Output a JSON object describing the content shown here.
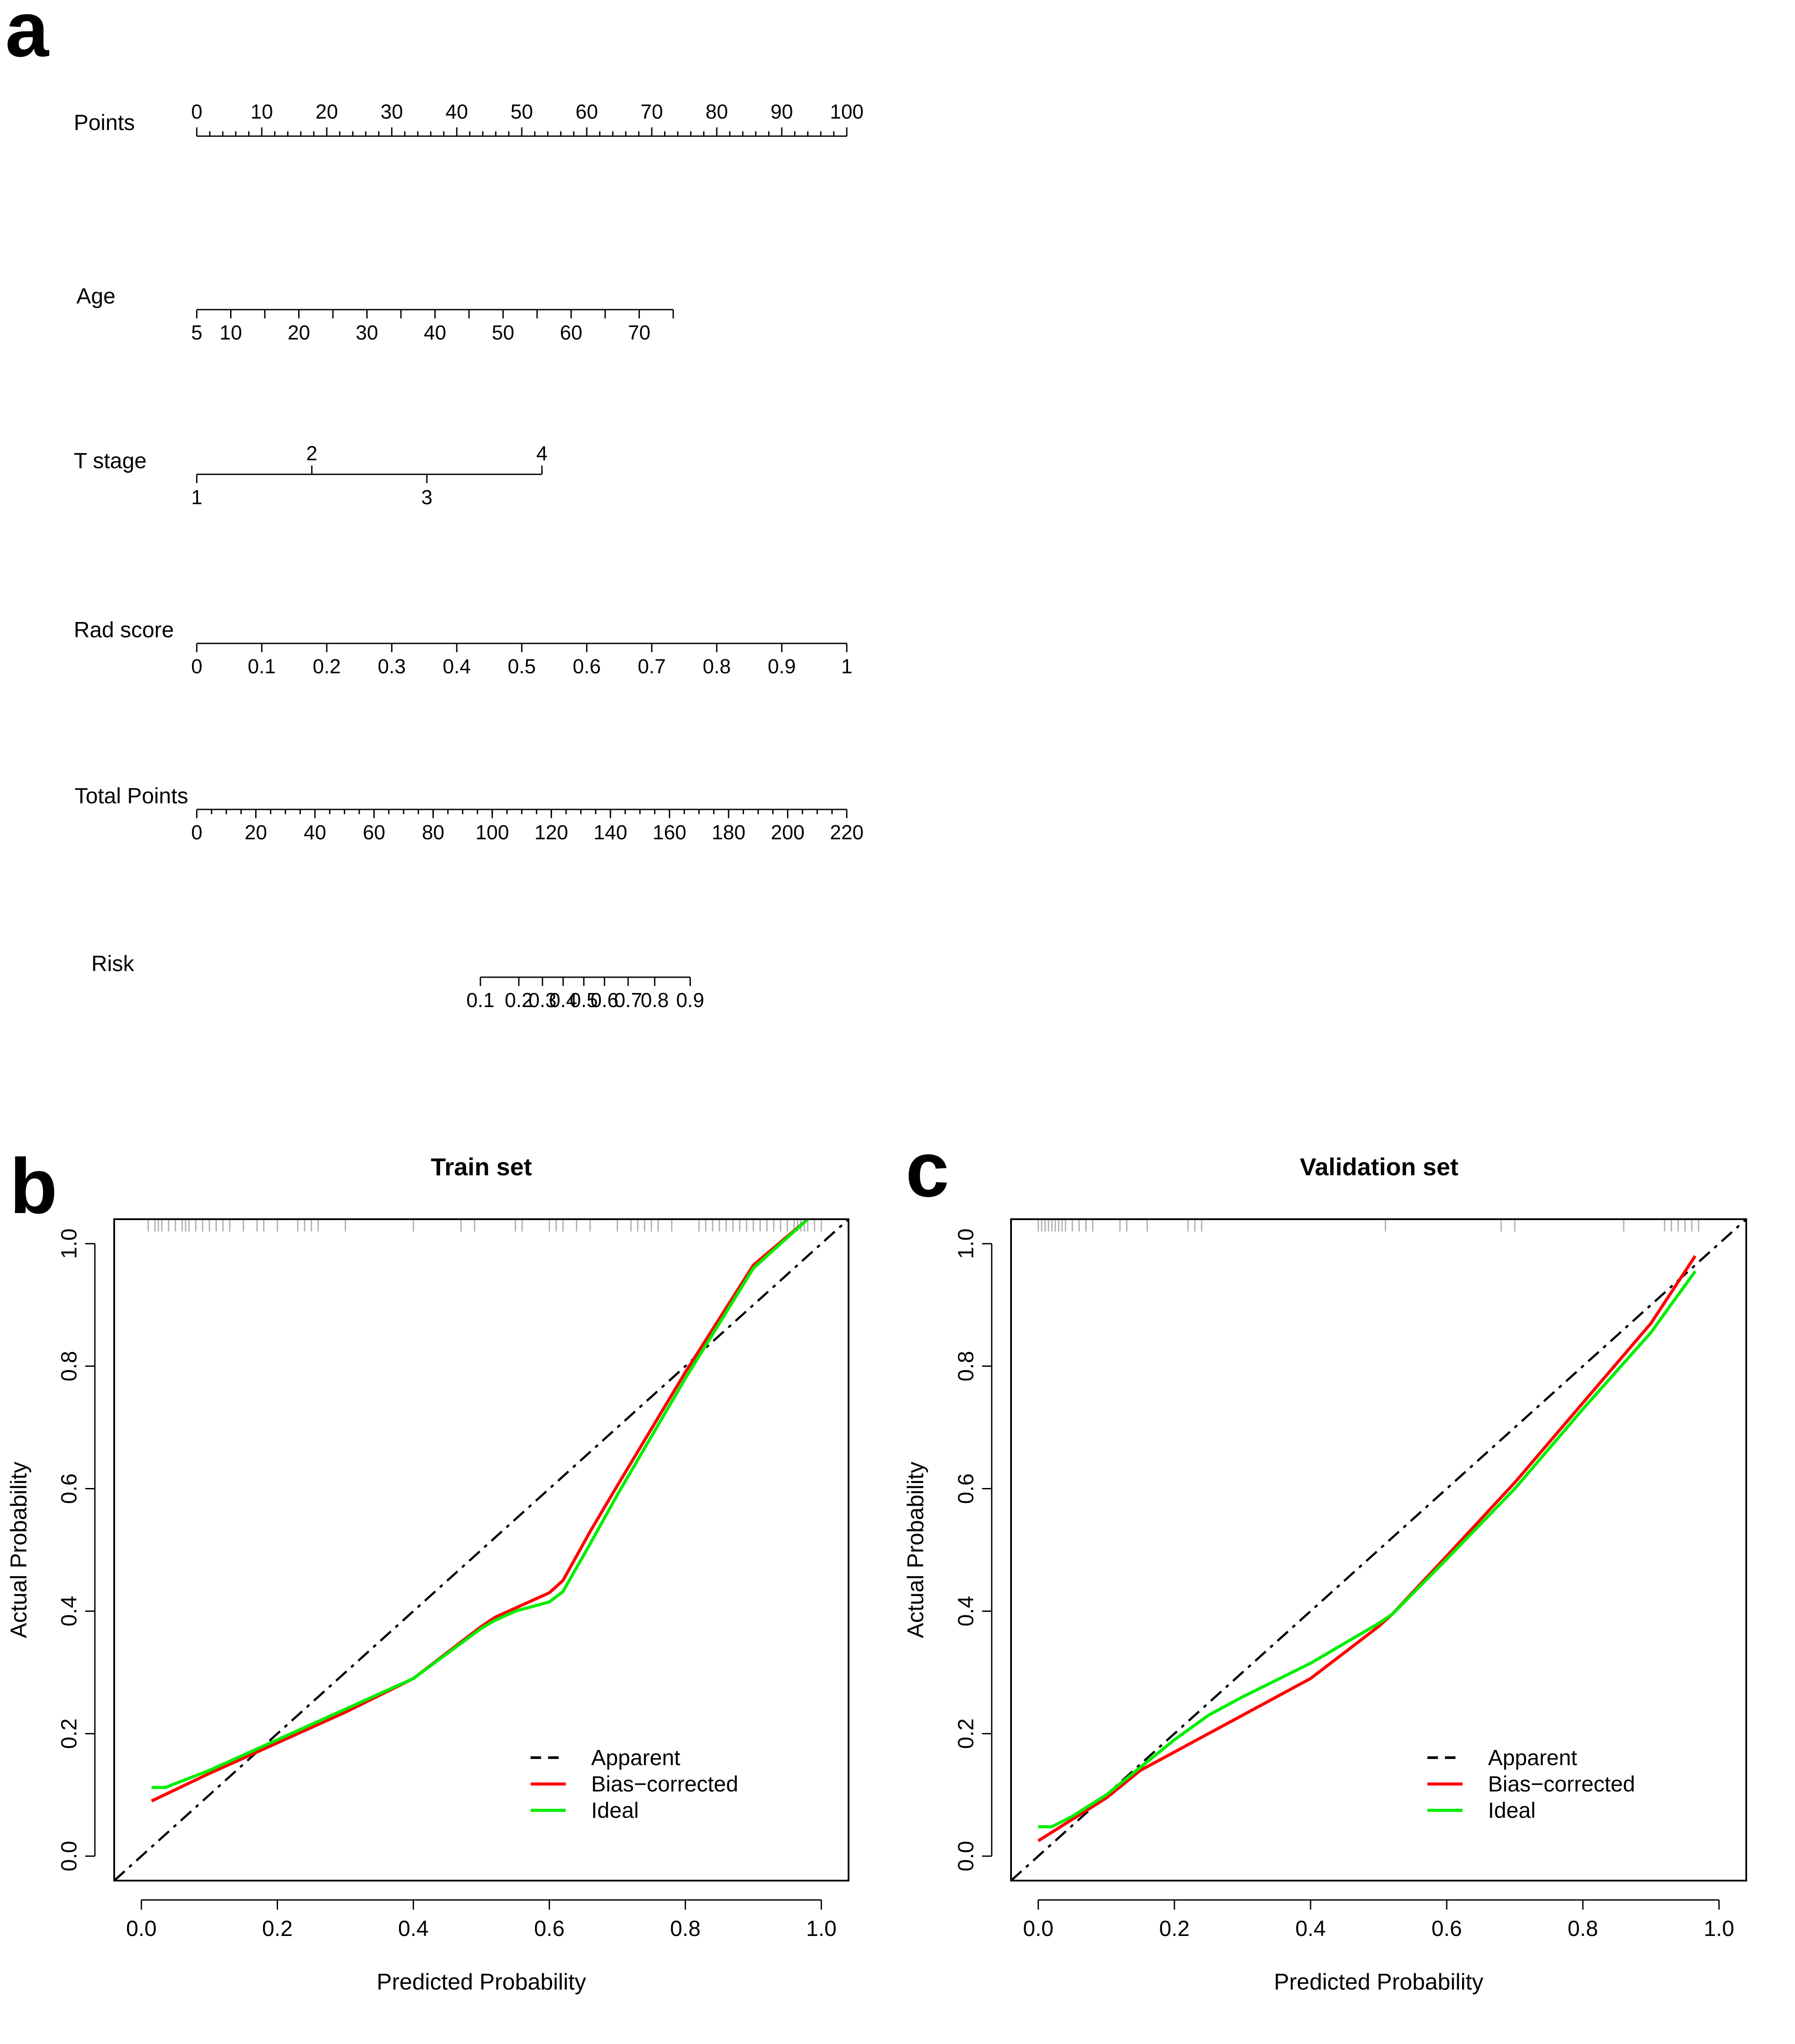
{
  "panels": {
    "a": {
      "letter": "a"
    },
    "b": {
      "letter": "b"
    },
    "c": {
      "letter": "c"
    }
  },
  "chart_data": [
    {
      "type": "nomogram",
      "panel": "a",
      "rows": [
        {
          "label": "Points",
          "orientation": "up",
          "min": 0,
          "max": 100,
          "minor_step": 2,
          "ticks": [
            0,
            10,
            20,
            30,
            40,
            50,
            60,
            70,
            80,
            90,
            100
          ],
          "tick_labels": [
            "0",
            "10",
            "20",
            "30",
            "40",
            "50",
            "60",
            "70",
            "80",
            "90",
            "100"
          ],
          "label_ticks": [
            0,
            10,
            20,
            30,
            40,
            50,
            60,
            70,
            80,
            90,
            100
          ]
        },
        {
          "label": "Age",
          "orientation": "down",
          "points_start": 0,
          "points_end": 73.3,
          "value_start": 5,
          "value_end": 75,
          "ticks": [
            5,
            10,
            15,
            20,
            25,
            30,
            35,
            40,
            45,
            50,
            55,
            60,
            65,
            70,
            75
          ],
          "tick_labels": [
            "5",
            "10",
            "20",
            "30",
            "40",
            "50",
            "60",
            "70"
          ],
          "label_ticks": [
            5,
            10,
            20,
            30,
            40,
            50,
            60,
            70
          ]
        },
        {
          "label": "T stage",
          "orientation": "alternate",
          "ticks": [
            1,
            2,
            3,
            4
          ],
          "tick_points": [
            0,
            17.7,
            35.4,
            53.1
          ],
          "tick_labels": [
            "1",
            "2",
            "3",
            "4"
          ]
        },
        {
          "label": "Rad score",
          "orientation": "down",
          "points_start": 0,
          "points_end": 100,
          "value_start": 0,
          "value_end": 1,
          "ticks": [
            0,
            0.1,
            0.2,
            0.3,
            0.4,
            0.5,
            0.6,
            0.7,
            0.8,
            0.9,
            1
          ],
          "tick_labels": [
            "0",
            "0.1",
            "0.2",
            "0.3",
            "0.4",
            "0.5",
            "0.6",
            "0.7",
            "0.8",
            "0.9",
            "1"
          ],
          "label_ticks": [
            0,
            0.1,
            0.2,
            0.3,
            0.4,
            0.5,
            0.6,
            0.7,
            0.8,
            0.9,
            1
          ]
        },
        {
          "label": "Total Points",
          "orientation": "down",
          "min": 0,
          "max": 220,
          "minor_step": 5,
          "ticks": [
            0,
            20,
            40,
            60,
            80,
            100,
            120,
            140,
            160,
            180,
            200,
            220
          ],
          "tick_labels": [
            "0",
            "20",
            "40",
            "60",
            "80",
            "100",
            "120",
            "140",
            "160",
            "180",
            "200",
            "220"
          ],
          "label_ticks": [
            0,
            20,
            40,
            60,
            80,
            100,
            120,
            140,
            160,
            180,
            200,
            220
          ]
        },
        {
          "label": "Risk",
          "orientation": "down",
          "ticks": [
            0.1,
            0.2,
            0.3,
            0.4,
            0.5,
            0.6,
            0.7,
            0.8,
            0.9
          ],
          "tick_total_points": [
            96,
            109,
            117,
            124,
            131,
            138,
            146,
            155,
            167
          ],
          "tick_labels": [
            "0.1",
            "0.2",
            "0.3",
            "0.4",
            "0.5",
            "0.6",
            "0.7",
            "0.8",
            "0.9"
          ]
        }
      ]
    },
    {
      "type": "line",
      "panel": "b",
      "title": "Train set",
      "xlabel": "Predicted Probability",
      "ylabel": "Actual Probability",
      "xlim": [
        -0.04,
        1.04
      ],
      "ylim": [
        -0.04,
        1.04
      ],
      "xticks": [
        0.0,
        0.2,
        0.4,
        0.6,
        0.8,
        1.0
      ],
      "xtick_labels": [
        "0.0",
        "0.2",
        "0.4",
        "0.6",
        "0.8",
        "1.0"
      ],
      "yticks": [
        0.0,
        0.2,
        0.4,
        0.6,
        0.8,
        1.0
      ],
      "ytick_labels": [
        "0.0",
        "0.2",
        "0.4",
        "0.6",
        "0.8",
        "1.0"
      ],
      "legend": [
        "Apparent",
        "Bias−corrected",
        "Ideal"
      ],
      "legend_position": "bottom-right",
      "series": [
        {
          "name": "Apparent",
          "color": "#000000",
          "style": "dashed",
          "x": [
            -0.04,
            1.04
          ],
          "y": [
            -0.04,
            1.04
          ]
        },
        {
          "name": "Bias−corrected",
          "color": "#ff0000",
          "style": "solid",
          "x": [
            0.015,
            0.1,
            0.2,
            0.3,
            0.4,
            0.5,
            0.52,
            0.55,
            0.6,
            0.62,
            0.66,
            0.7,
            0.8,
            0.9,
            0.98
          ],
          "y": [
            0.09,
            0.135,
            0.185,
            0.235,
            0.29,
            0.375,
            0.39,
            0.405,
            0.43,
            0.45,
            0.53,
            0.605,
            0.79,
            0.965,
            1.04
          ]
        },
        {
          "name": "Ideal",
          "color": "#00ee00",
          "style": "solid",
          "x": [
            0.015,
            0.035,
            0.1,
            0.2,
            0.3,
            0.4,
            0.5,
            0.52,
            0.55,
            0.6,
            0.62,
            0.66,
            0.7,
            0.8,
            0.9,
            0.98
          ],
          "y": [
            0.112,
            0.112,
            0.14,
            0.19,
            0.24,
            0.29,
            0.372,
            0.385,
            0.4,
            0.415,
            0.432,
            0.51,
            0.59,
            0.78,
            0.96,
            1.04
          ]
        }
      ],
      "rug_x": [
        0.01,
        0.02,
        0.025,
        0.03,
        0.04,
        0.05,
        0.06,
        0.065,
        0.07,
        0.08,
        0.09,
        0.1,
        0.11,
        0.12,
        0.13,
        0.15,
        0.17,
        0.18,
        0.2,
        0.23,
        0.24,
        0.25,
        0.26,
        0.3,
        0.4,
        0.47,
        0.49,
        0.55,
        0.56,
        0.6,
        0.61,
        0.62,
        0.64,
        0.66,
        0.7,
        0.72,
        0.73,
        0.74,
        0.75,
        0.76,
        0.78,
        0.82,
        0.83,
        0.84,
        0.85,
        0.86,
        0.87,
        0.88,
        0.89,
        0.9,
        0.91,
        0.92,
        0.93,
        0.94,
        0.95,
        0.96,
        0.965,
        0.97,
        0.975,
        0.98,
        0.99,
        1.0
      ]
    },
    {
      "type": "line",
      "panel": "c",
      "title": "Validation set",
      "xlabel": "Predicted Probability",
      "ylabel": "Actual Probability",
      "xlim": [
        -0.04,
        1.04
      ],
      "ylim": [
        -0.04,
        1.04
      ],
      "xticks": [
        0.0,
        0.2,
        0.4,
        0.6,
        0.8,
        1.0
      ],
      "xtick_labels": [
        "0.0",
        "0.2",
        "0.4",
        "0.6",
        "0.8",
        "1.0"
      ],
      "yticks": [
        0.0,
        0.2,
        0.4,
        0.6,
        0.8,
        1.0
      ],
      "ytick_labels": [
        "0.0",
        "0.2",
        "0.4",
        "0.6",
        "0.8",
        "1.0"
      ],
      "legend": [
        "Apparent",
        "Bias−corrected",
        "Ideal"
      ],
      "legend_position": "bottom-right",
      "series": [
        {
          "name": "Apparent",
          "color": "#000000",
          "style": "dashed",
          "x": [
            -0.04,
            1.04
          ],
          "y": [
            -0.04,
            1.04
          ]
        },
        {
          "name": "Bias−corrected",
          "color": "#ff0000",
          "style": "solid",
          "x": [
            0.0,
            0.05,
            0.1,
            0.15,
            0.2,
            0.25,
            0.3,
            0.4,
            0.5,
            0.52,
            0.6,
            0.7,
            0.8,
            0.9,
            0.965
          ],
          "y": [
            0.025,
            0.06,
            0.095,
            0.14,
            0.17,
            0.2,
            0.23,
            0.29,
            0.375,
            0.395,
            0.49,
            0.61,
            0.74,
            0.87,
            0.98
          ]
        },
        {
          "name": "Ideal",
          "color": "#00ee00",
          "style": "solid",
          "x": [
            0.0,
            0.02,
            0.05,
            0.1,
            0.15,
            0.2,
            0.25,
            0.3,
            0.4,
            0.5,
            0.52,
            0.6,
            0.7,
            0.8,
            0.9,
            0.965
          ],
          "y": [
            0.048,
            0.048,
            0.065,
            0.1,
            0.145,
            0.19,
            0.23,
            0.26,
            0.315,
            0.38,
            0.395,
            0.485,
            0.6,
            0.73,
            0.855,
            0.955
          ]
        }
      ],
      "rug_x": [
        0.0,
        0.005,
        0.01,
        0.015,
        0.02,
        0.025,
        0.03,
        0.035,
        0.04,
        0.05,
        0.06,
        0.07,
        0.08,
        0.12,
        0.13,
        0.16,
        0.22,
        0.23,
        0.24,
        0.51,
        0.68,
        0.7,
        0.86,
        0.92,
        0.93,
        0.94,
        0.95,
        0.96,
        0.97
      ]
    }
  ]
}
